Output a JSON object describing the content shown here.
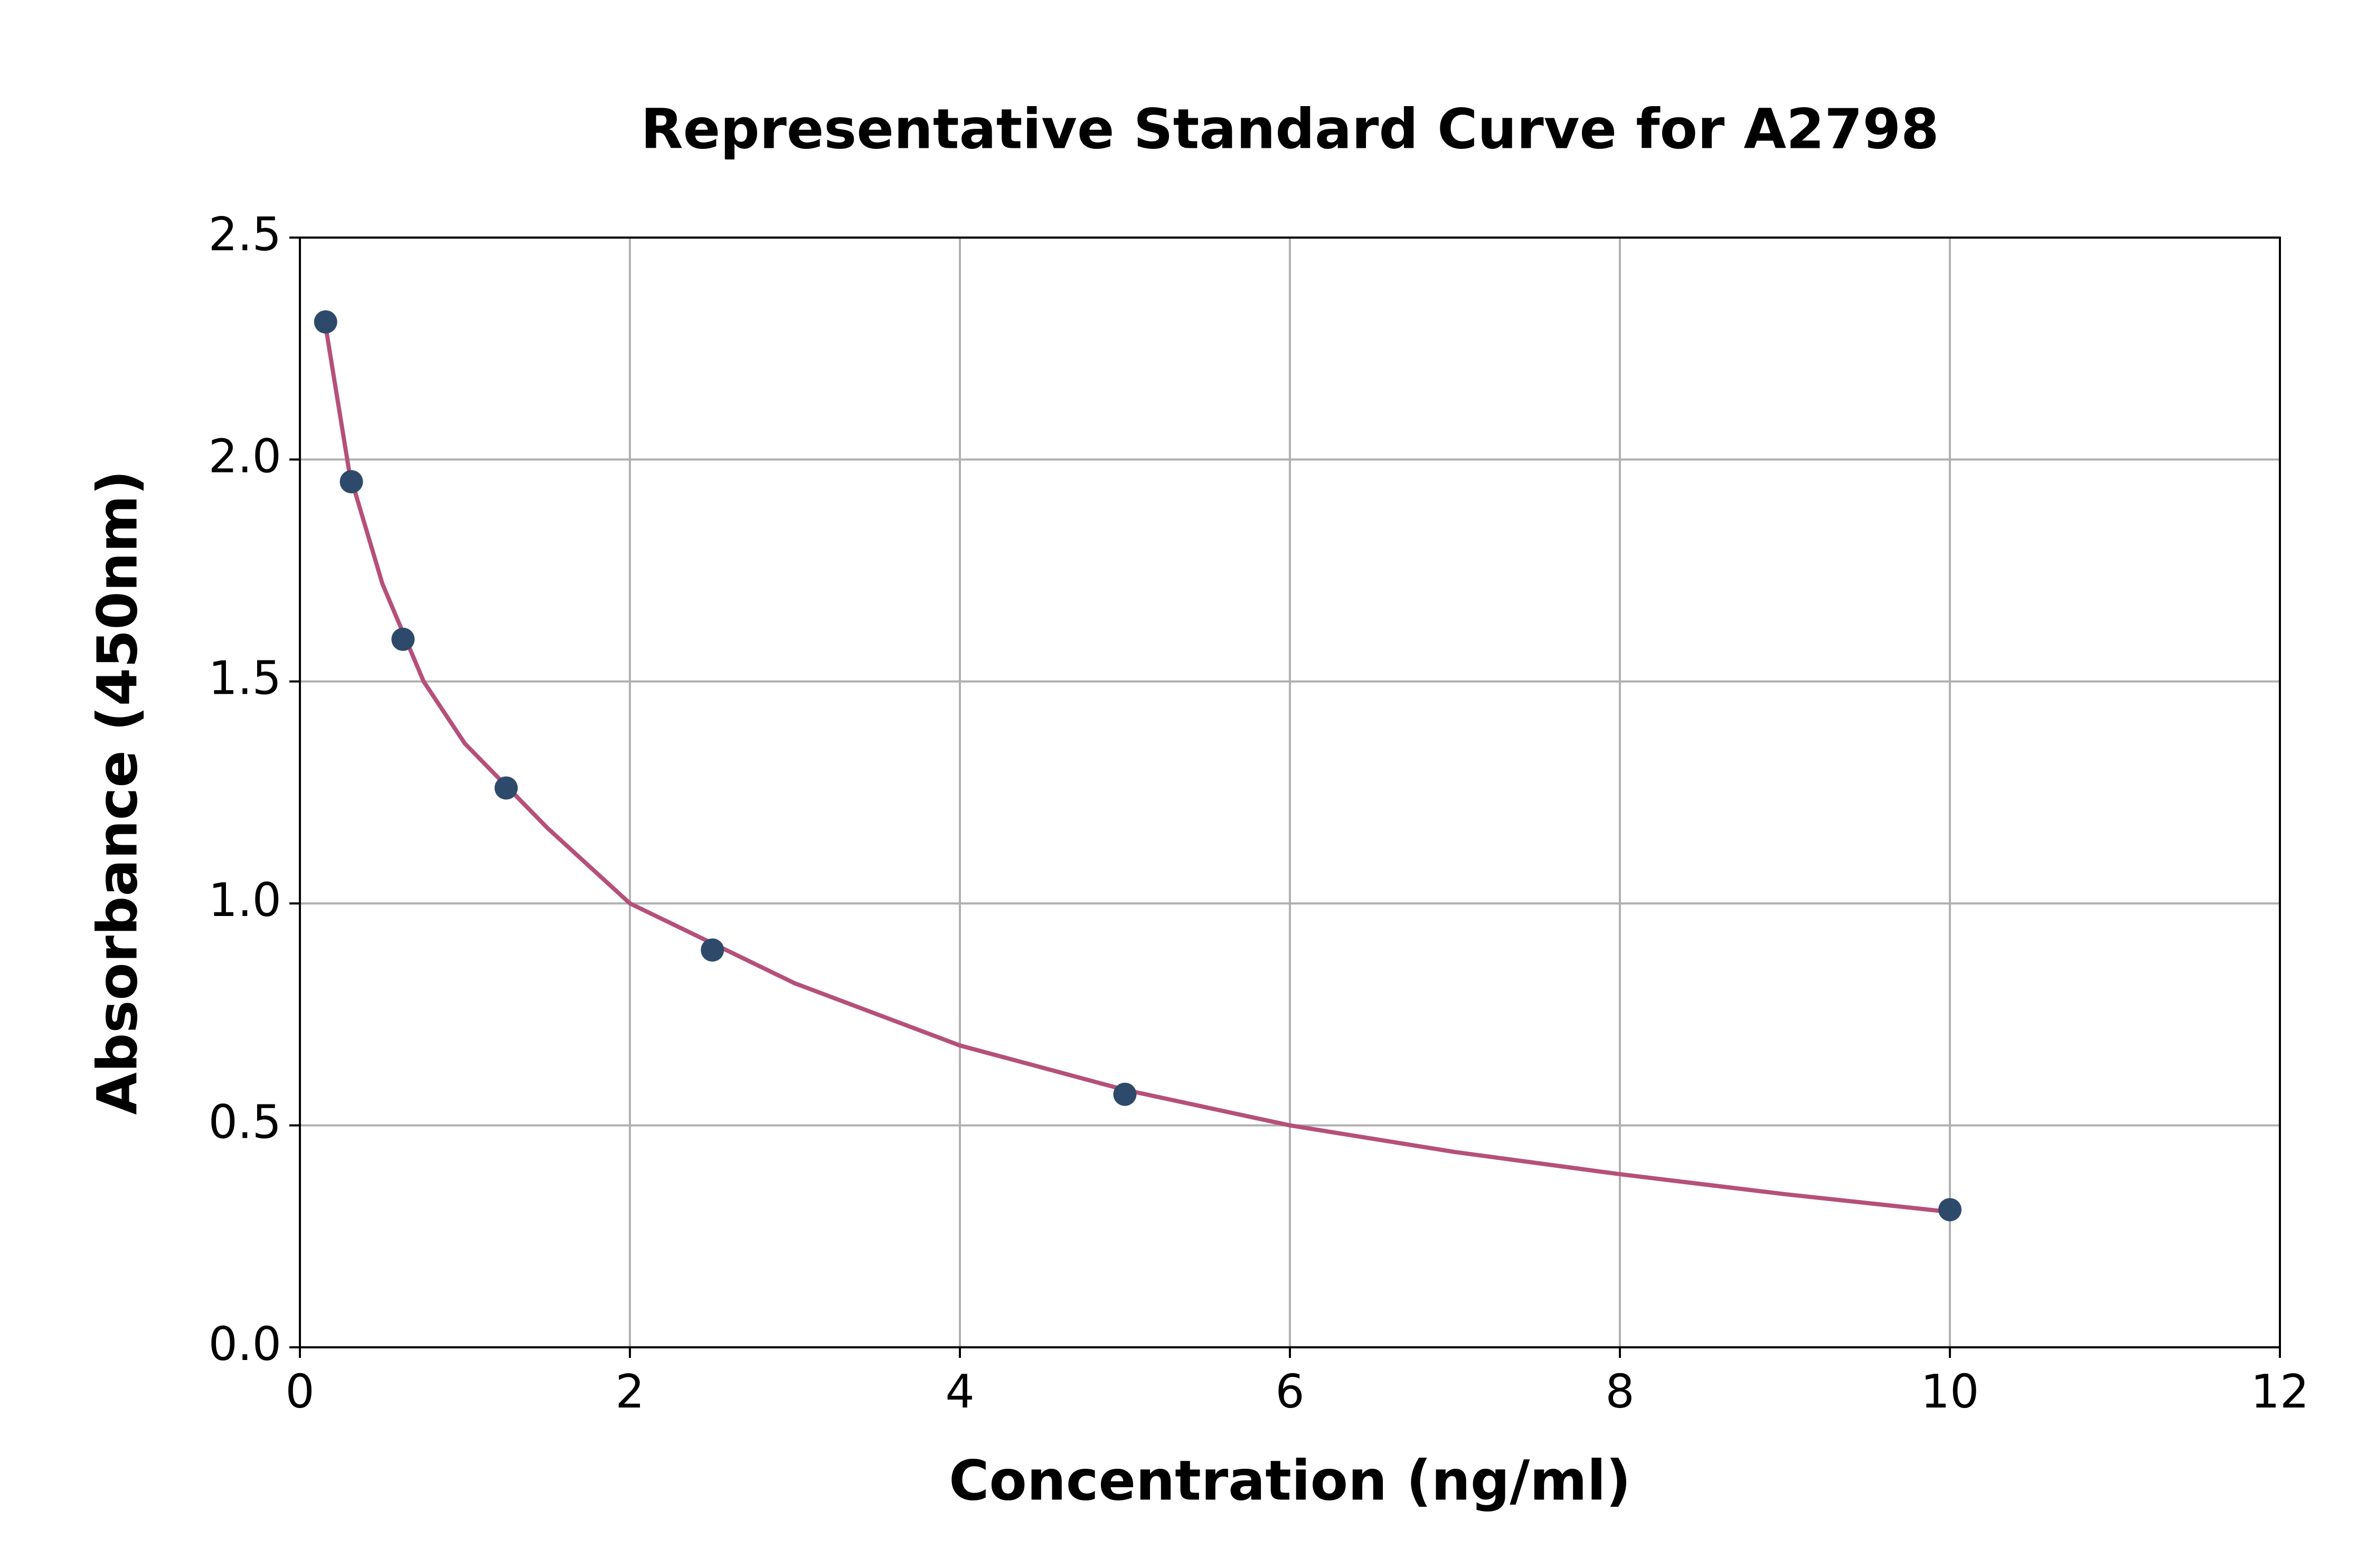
{
  "chart_data": {
    "type": "scatter",
    "title": "Representative Standard Curve for A2798",
    "x_label": "Concentration (ng/ml)",
    "y_label": "Absorbance (450nm)",
    "xlim": [
      0,
      12
    ],
    "xticks": [
      0,
      2,
      4,
      6,
      8,
      10,
      12
    ],
    "ylim": [
      0,
      2.5
    ],
    "yticks": [
      {
        "value": 0,
        "label": "0.0"
      },
      0.5,
      {
        "value": 1,
        "label": "1.0"
      },
      1.5,
      {
        "value": 2,
        "label": "2.0"
      },
      2.5
    ],
    "grid": true,
    "series": [
      {
        "type": "line",
        "color": "#b5507a",
        "x": [
          0.156,
          0.3,
          0.5,
          0.75,
          1,
          1.5,
          2,
          3,
          4,
          5,
          6,
          7,
          8,
          9,
          10
        ],
        "values": [
          2.3,
          1.97,
          1.72,
          1.5,
          1.36,
          1.17,
          1.0,
          0.82,
          0.68,
          0.58,
          0.5,
          0.44,
          0.39,
          0.345,
          0.305
        ]
      },
      {
        "type": "scatter",
        "color": "#2e4a6b",
        "x": [
          0.156,
          0.312,
          0.625,
          1.25,
          2.5,
          5,
          10
        ],
        "values": [
          2.31,
          1.95,
          1.595,
          1.26,
          0.895,
          0.57,
          0.31
        ]
      }
    ]
  }
}
